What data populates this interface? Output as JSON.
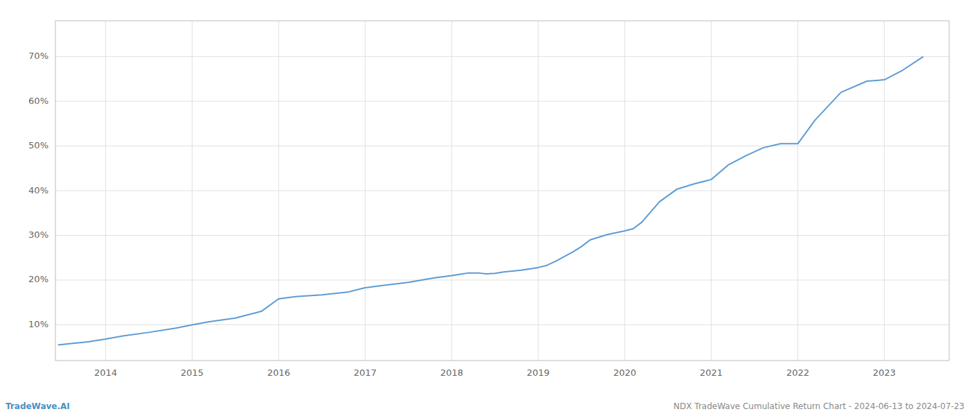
{
  "chart_data": {
    "type": "line",
    "x": [
      2013.45,
      2013.6,
      2013.8,
      2014.0,
      2014.2,
      2014.5,
      2014.8,
      2015.0,
      2015.2,
      2015.5,
      2015.8,
      2016.0,
      2016.2,
      2016.5,
      2016.8,
      2017.0,
      2017.2,
      2017.5,
      2017.8,
      2018.0,
      2018.1,
      2018.2,
      2018.3,
      2018.4,
      2018.5,
      2018.6,
      2018.8,
      2019.0,
      2019.1,
      2019.2,
      2019.4,
      2019.5,
      2019.6,
      2019.8,
      2020.0,
      2020.1,
      2020.2,
      2020.4,
      2020.6,
      2020.8,
      2021.0,
      2021.2,
      2021.4,
      2021.6,
      2021.8,
      2022.0,
      2022.2,
      2022.5,
      2022.8,
      2023.0,
      2023.2,
      2023.45
    ],
    "values": [
      0.055,
      0.058,
      0.062,
      0.068,
      0.075,
      0.083,
      0.092,
      0.1,
      0.107,
      0.115,
      0.13,
      0.158,
      0.163,
      0.167,
      0.173,
      0.183,
      0.188,
      0.195,
      0.205,
      0.21,
      0.213,
      0.216,
      0.216,
      0.214,
      0.215,
      0.218,
      0.222,
      0.228,
      0.233,
      0.242,
      0.263,
      0.275,
      0.29,
      0.302,
      0.31,
      0.315,
      0.33,
      0.375,
      0.403,
      0.415,
      0.425,
      0.458,
      0.478,
      0.496,
      0.505,
      0.505,
      0.558,
      0.62,
      0.645,
      0.648,
      0.668,
      0.7
    ],
    "color": "#5b9bd5",
    "xlim": [
      2013.42,
      2023.75
    ],
    "xticks": [
      2014,
      2015,
      2016,
      2017,
      2018,
      2019,
      2020,
      2021,
      2022,
      2023
    ],
    "ylim": [
      0.02,
      0.78
    ],
    "yticks": [
      {
        "value": 0.1,
        "label": "10%"
      },
      {
        "value": 0.2,
        "label": "20%"
      },
      {
        "value": 0.3,
        "label": "30%"
      },
      {
        "value": 0.4,
        "label": "40%"
      },
      {
        "value": 0.5,
        "label": "50%"
      },
      {
        "value": 0.6,
        "label": "60%"
      },
      {
        "value": 0.7,
        "label": "70%"
      }
    ],
    "grid": true,
    "annotations": [
      {
        "text": "TradeWave.AI",
        "color": "#4a90c4"
      },
      {
        "text": "NDX TradeWave Cumulative Return Chart - 2024-06-13 to 2024-07-23",
        "color": "#888888"
      }
    ]
  }
}
